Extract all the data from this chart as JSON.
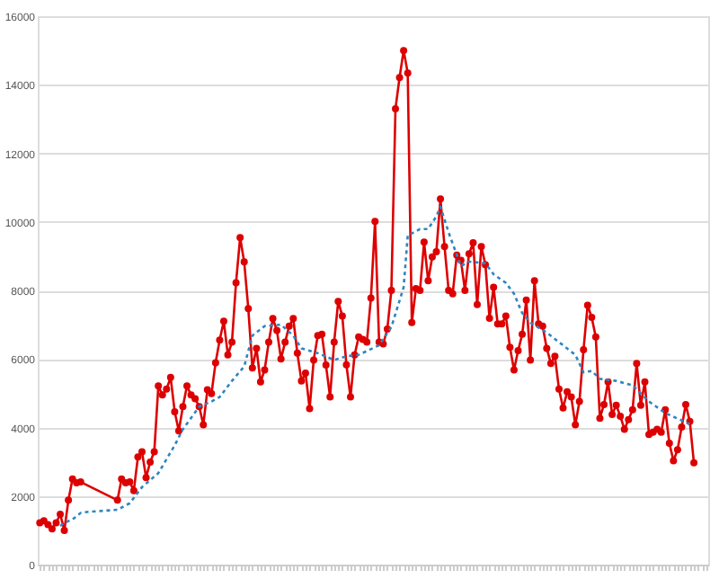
{
  "chart_data": {
    "type": "line",
    "ylim": [
      0,
      16000
    ],
    "yticks": [
      0,
      2000,
      4000,
      6000,
      8000,
      10000,
      12000,
      14000,
      16000
    ],
    "grid": "y",
    "tick_labels": "y",
    "categories": [
      null,
      null,
      null,
      null,
      null,
      null,
      null,
      null,
      null,
      null,
      null,
      null,
      null,
      null,
      null,
      null,
      null,
      null,
      null,
      null,
      null,
      null,
      null,
      null,
      null,
      null,
      null,
      null,
      null,
      null,
      null,
      null,
      null,
      null,
      null,
      null,
      null,
      null,
      null,
      null,
      null,
      null,
      null,
      null,
      null,
      null,
      null,
      null,
      null,
      null,
      null,
      null,
      null,
      null,
      null,
      null,
      null,
      null,
      null,
      null,
      null,
      null,
      null,
      null,
      null,
      null,
      null,
      null,
      null,
      null,
      null,
      null,
      null,
      null,
      null,
      null,
      null,
      null,
      null,
      null,
      null,
      null,
      null,
      null,
      null,
      null,
      null,
      null,
      null,
      null,
      null,
      null,
      null,
      null,
      null,
      null,
      null,
      null,
      null,
      null,
      null,
      null,
      null,
      null,
      null,
      null,
      null,
      null,
      null,
      null,
      null,
      null,
      null,
      null,
      null,
      null,
      null,
      null,
      null,
      null,
      null,
      null,
      null,
      null,
      null,
      null,
      null,
      null,
      null,
      null,
      null,
      null,
      null,
      null,
      null,
      null,
      null,
      null,
      null,
      null,
      null,
      null,
      null,
      null,
      null,
      null,
      null,
      null,
      null,
      null,
      null,
      null,
      null,
      null,
      null,
      null,
      null,
      null,
      null,
      null,
      null,
      null,
      null,
      null
    ],
    "series": [
      {
        "color": "#dd0000",
        "marker": "circle",
        "line_style": "solid",
        "values": [
          1220,
          1280,
          1170,
          1040,
          1220,
          1470,
          1000,
          1880,
          2500,
          2390,
          2410,
          null,
          null,
          null,
          null,
          null,
          null,
          null,
          null,
          1880,
          2500,
          2390,
          2410,
          2160,
          3140,
          3290,
          2540,
          2990,
          3290,
          5210,
          4950,
          5120,
          5460,
          4460,
          3900,
          4610,
          5210,
          4950,
          4840,
          4610,
          4080,
          5100,
          4990,
          5890,
          6550,
          7100,
          6120,
          6490,
          8220,
          9540,
          8830,
          7470,
          5740,
          6310,
          5330,
          5680,
          6490,
          7180,
          6830,
          6000,
          6490,
          6960,
          7180,
          6170,
          5360,
          5590,
          4550,
          5970,
          6680,
          6720,
          5820,
          4890,
          6490,
          7680,
          7250,
          5830,
          4890,
          6120,
          6640,
          6570,
          6490,
          7780,
          10010,
          6490,
          6440,
          6870,
          8000,
          13300,
          14210,
          15000,
          14340,
          7060,
          8050,
          8000,
          9410,
          8280,
          8980,
          9130,
          10670,
          9280,
          8000,
          7900,
          9030,
          8880,
          8000,
          9070,
          9390,
          7590,
          9280,
          8750,
          7190,
          8090,
          7020,
          7020,
          7250,
          6340,
          5680,
          6240,
          6720,
          7720,
          5970,
          8280,
          7020,
          6960,
          6310,
          5870,
          6080,
          5120,
          4570,
          5040,
          4890,
          4080,
          4760,
          6270,
          7570,
          7210,
          6640,
          4270,
          4670,
          5330,
          4380,
          4650,
          4330,
          3950,
          4230,
          4520,
          5870,
          4650,
          5330,
          3800,
          3860,
          3950,
          3860,
          4520,
          3540,
          3030,
          3350,
          4010,
          4670,
          4180,
          2970,
          null,
          null,
          null
        ]
      },
      {
        "color": "#2e86c1",
        "marker": "none",
        "line_style": "dotted",
        "values": [
          null,
          null,
          null,
          null,
          null,
          1130,
          1220,
          null,
          1320,
          null,
          1510,
          null,
          1540,
          null,
          null,
          null,
          null,
          null,
          null,
          1600,
          null,
          null,
          1790,
          null,
          null,
          2260,
          null,
          null,
          null,
          2670,
          null,
          null,
          null,
          3480,
          null,
          3950,
          null,
          null,
          null,
          4610,
          null,
          null,
          4760,
          null,
          4890,
          null,
          null,
          5360,
          null,
          null,
          5780,
          null,
          6680,
          null,
          null,
          6960,
          null,
          null,
          null,
          7000,
          null,
          null,
          6680,
          null,
          6310,
          null,
          null,
          null,
          6170,
          null,
          null,
          null,
          5970,
          null,
          null,
          6080,
          null,
          null,
          6120,
          null,
          null,
          null,
          null,
          6400,
          null,
          null,
          6930,
          null,
          null,
          8090,
          9600,
          null,
          null,
          9790,
          null,
          9790,
          null,
          10160,
          10440,
          null,
          9690,
          null,
          null,
          8710,
          null,
          8840,
          null,
          null,
          null,
          8790,
          null,
          8470,
          null,
          null,
          8220,
          null,
          7900,
          null,
          7340,
          null,
          7060,
          null,
          null,
          null,
          6770,
          null,
          null,
          6490,
          null,
          null,
          null,
          6120,
          null,
          5610,
          null,
          5650,
          null,
          5420,
          null,
          null,
          null,
          5360,
          null,
          null,
          null,
          5230,
          null,
          null,
          null,
          4760,
          null,
          null,
          null,
          4420,
          null,
          null,
          null,
          null,
          null,
          4100,
          null,
          null,
          null,
          null
        ]
      }
    ]
  }
}
